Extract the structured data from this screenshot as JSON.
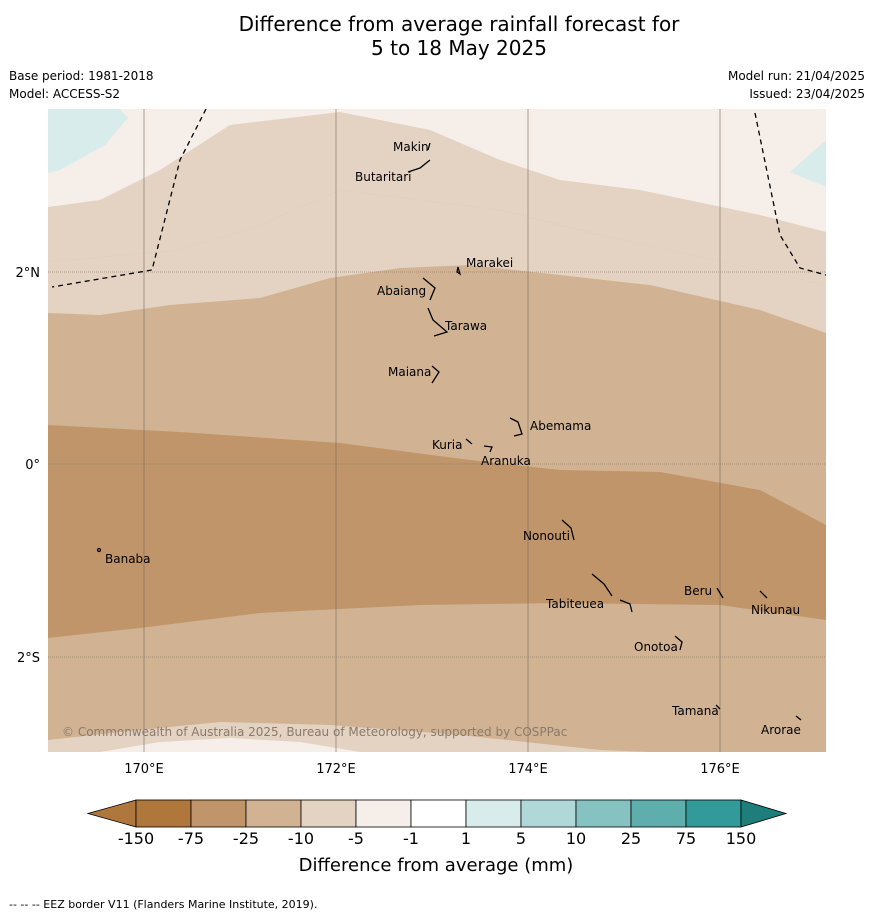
{
  "header": {
    "title_line1": "Difference from average rainfall forecast for",
    "title_line2": "5 to 18 May 2025",
    "base_period": "Base period: 1981-2018",
    "model": "Model: ACCESS-S2",
    "model_run": "Model run: 21/04/2025",
    "issued": "Issued: 23/04/2025"
  },
  "map": {
    "lat_labels": [
      "2°N",
      "0°",
      "2°S"
    ],
    "lon_labels": [
      "170°E",
      "172°E",
      "174°E",
      "176°E"
    ],
    "copyright": "© Commonwealth of Australia 2025, Bureau of Meteorology, supported by COSPPac",
    "places": [
      {
        "name": "Makin"
      },
      {
        "name": "Butaritari"
      },
      {
        "name": "Marakei"
      },
      {
        "name": "Abaiang"
      },
      {
        "name": "Tarawa"
      },
      {
        "name": "Maiana"
      },
      {
        "name": "Abemama"
      },
      {
        "name": "Kuria"
      },
      {
        "name": "Aranuka"
      },
      {
        "name": "Nonouti"
      },
      {
        "name": "Banaba"
      },
      {
        "name": "Tabiteuea"
      },
      {
        "name": "Beru"
      },
      {
        "name": "Nikunau"
      },
      {
        "name": "Onotoa"
      },
      {
        "name": "Tamana"
      },
      {
        "name": "Arorae"
      }
    ]
  },
  "legend": {
    "title": "Difference from average (mm)",
    "ticks": [
      "-150",
      "-75",
      "-25",
      "-10",
      "-5",
      "-1",
      "1",
      "5",
      "10",
      "25",
      "75",
      "150"
    ],
    "colors": [
      "#b0773d",
      "#c0956a",
      "#d1b393",
      "#e4d3c3",
      "#f5eee9",
      "#ffffff",
      "#d8ecec",
      "#b0d8d8",
      "#86c2c1",
      "#5daeac",
      "#329a98",
      "#1d7e7c"
    ]
  },
  "footer": {
    "note": "--  --  -- EEZ border V11 (Flanders Marine Institute, 2019)."
  }
}
